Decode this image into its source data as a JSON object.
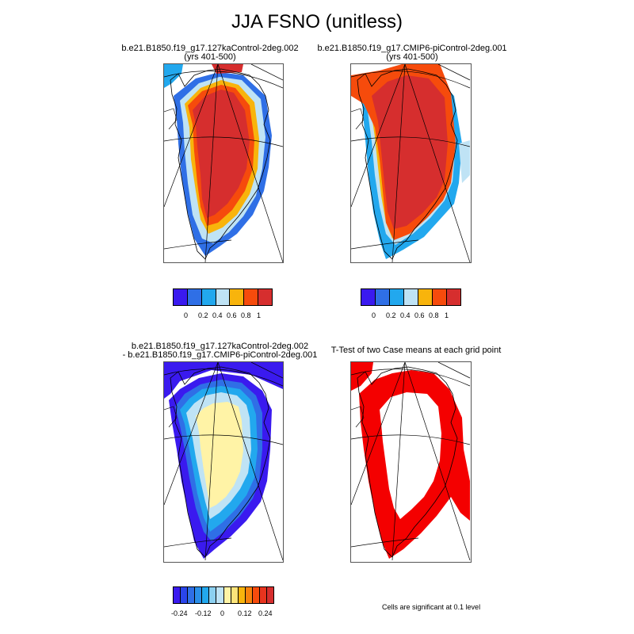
{
  "title": "JJA FSNO (unitless)",
  "panels": {
    "top_left": {
      "line1": "b.e21.B1850.f19_g17.127kaControl-2deg.002",
      "line2": "(yrs 401-500)"
    },
    "top_right": {
      "line1": "b.e21.B1850.f19_g17.CMIP6-piControl-2deg.001",
      "line2": "(yrs 401-500)"
    },
    "bottom_left": {
      "line1": "b.e21.B1850.f19_g17.127kaControl-2deg.002",
      "line2": "- b.e21.B1850.f19_g17.CMIP6-piControl-2deg.001"
    },
    "bottom_right": {
      "line1": "T-Test of two Case means at each grid point",
      "line2": ""
    }
  },
  "colorbar_abs": {
    "colors": [
      "#3a1aef",
      "#2f6fe6",
      "#22a8ee",
      "#bfe3f5",
      "#f8b40c",
      "#f64b0c",
      "#d62e2e"
    ],
    "tick_labels": [
      "0",
      "0.2",
      "0.4",
      "0.6",
      "0.8",
      "1"
    ]
  },
  "colorbar_diff": {
    "colors": [
      "#3a1aef",
      "#2a45ea",
      "#2f6fe6",
      "#2a8fe9",
      "#22a8ee",
      "#8cd0f0",
      "#bfe3f5",
      "#fff3a6",
      "#fde47a",
      "#f8b40c",
      "#f7820c",
      "#f64b0c",
      "#e8341e",
      "#d62e2e"
    ],
    "tick_labels": [
      "-0.24",
      "-0.12",
      "0",
      "0.12",
      "0.24"
    ]
  },
  "significance_color": "#f40000",
  "significance_note": "Cells are significant at 0.1 level"
}
